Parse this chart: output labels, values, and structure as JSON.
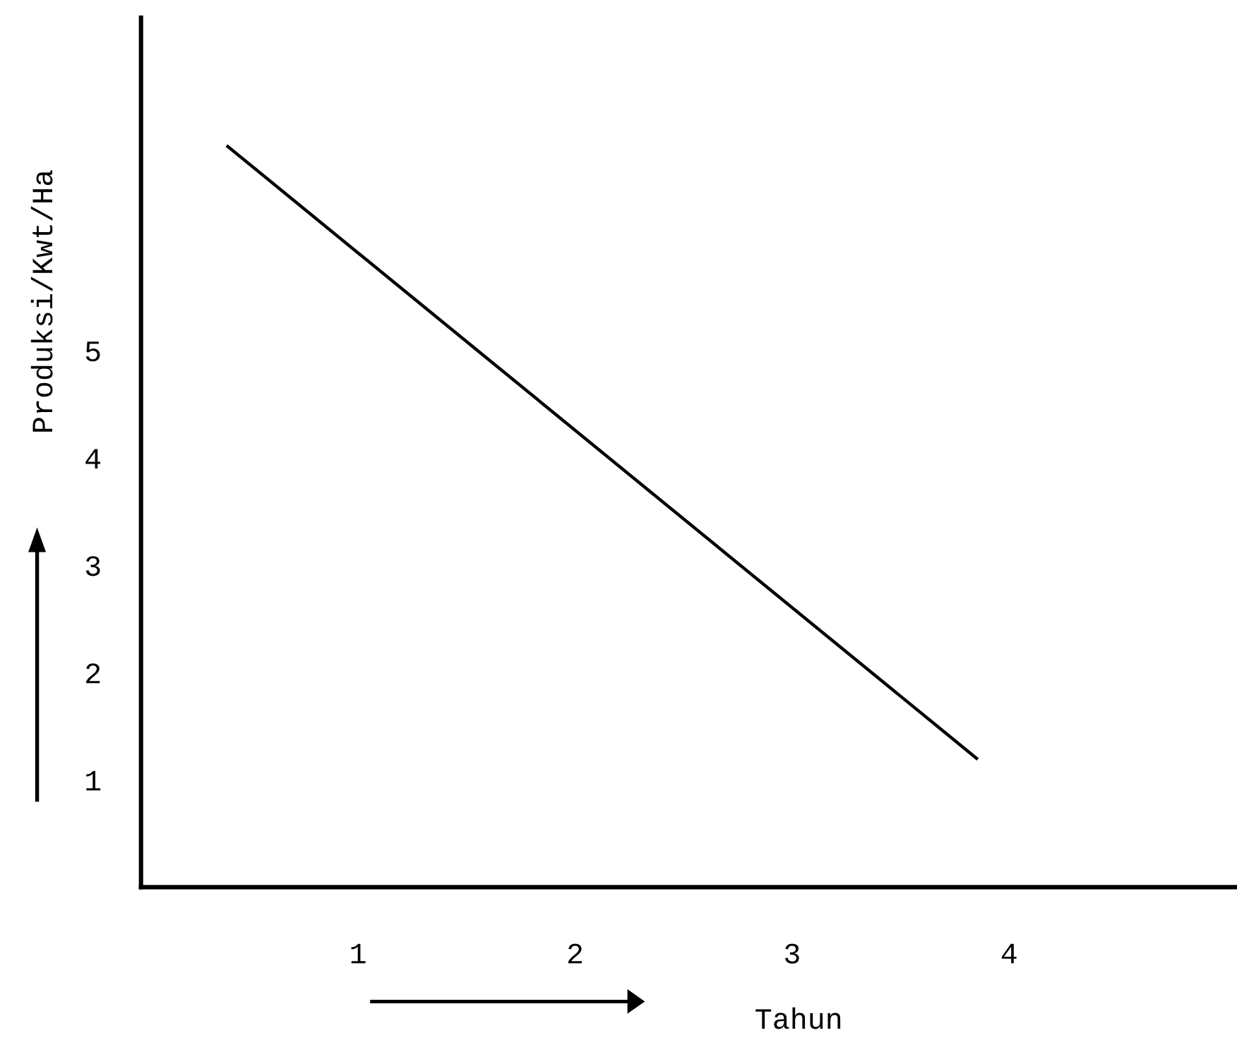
{
  "chart_data": {
    "type": "line",
    "xlabel": "Tahun",
    "ylabel": "Produksi/Kwt/Ha",
    "x": [
      0.4,
      3.85
    ],
    "series": [
      {
        "color": "#000000",
        "values": [
          6.9,
          1.2
        ]
      }
    ],
    "xlim": [
      0,
      5.05
    ],
    "ylim": [
      0,
      8.1
    ],
    "xticks": [
      1,
      2,
      3,
      4
    ],
    "yticks": [
      1,
      2,
      3,
      4,
      5
    ],
    "grid": false,
    "legend": false,
    "marker": "none",
    "line_style": "solid"
  }
}
